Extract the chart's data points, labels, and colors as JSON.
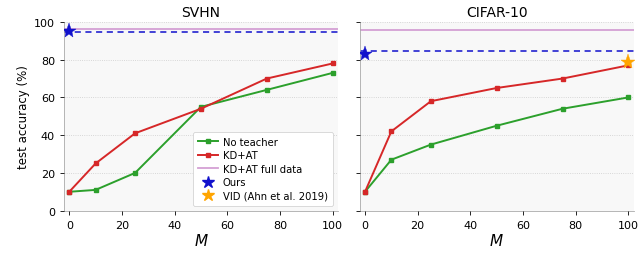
{
  "svhn": {
    "title": "SVHN",
    "no_teacher_x": [
      0,
      10,
      25,
      50,
      75,
      100
    ],
    "no_teacher_y": [
      10,
      11,
      20,
      55,
      64,
      73
    ],
    "kd_at_x": [
      0,
      10,
      25,
      50,
      75,
      100
    ],
    "kd_at_y": [
      10,
      25,
      41,
      54,
      70,
      78
    ],
    "full_data_y": 96.5,
    "ours_x": 0,
    "ours_y": 95.0,
    "ours_dashed_y": 94.5,
    "ylim": [
      0,
      100
    ],
    "xlim": [
      -2,
      102
    ]
  },
  "cifar10": {
    "title": "CIFAR-10",
    "no_teacher_x": [
      0,
      10,
      25,
      50,
      75,
      100
    ],
    "no_teacher_y": [
      10,
      27,
      35,
      45,
      54,
      60
    ],
    "kd_at_x": [
      0,
      10,
      25,
      50,
      75,
      100
    ],
    "kd_at_y": [
      10,
      42,
      58,
      65,
      70,
      77
    ],
    "full_data_y": 95.5,
    "ours_x": 0,
    "ours_y": 83.0,
    "ours_dashed_y": 84.5,
    "vid_x": 100,
    "vid_y": 79.0,
    "ylim": [
      0,
      100
    ],
    "xlim": [
      -2,
      102
    ]
  },
  "colors": {
    "no_teacher": "#2ca02c",
    "kd_at": "#d62728",
    "full_data": "#d4a0d4",
    "ours_blue": "#1111cc",
    "vid_orange": "#FFA500",
    "grid": "#cccccc",
    "bg": "#f8f8f8"
  },
  "ylabel": "test accuracy (%)",
  "xlabel": "$M$",
  "yticks": [
    0,
    20,
    40,
    60,
    80,
    100
  ],
  "xticks": [
    0,
    20,
    40,
    60,
    80,
    100
  ]
}
